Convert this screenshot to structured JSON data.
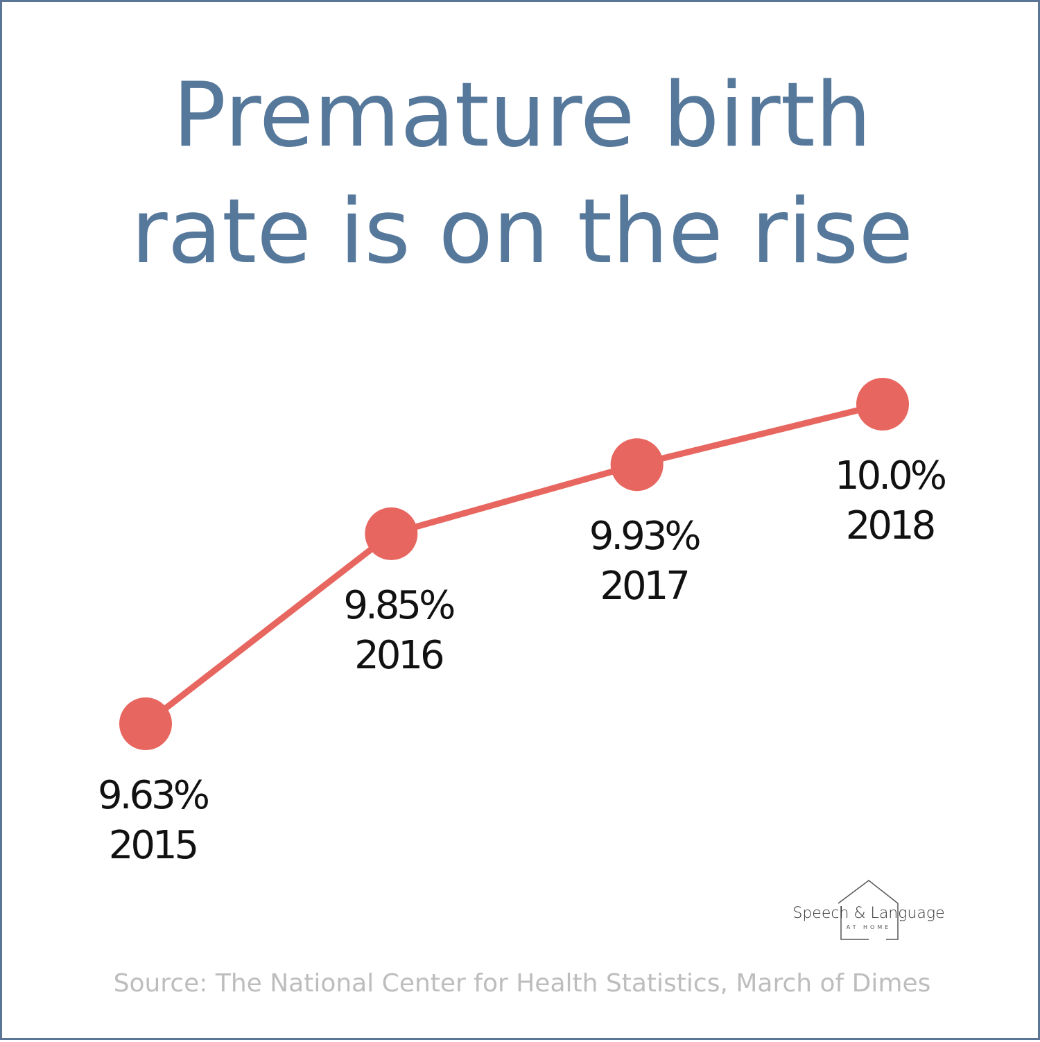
{
  "title": {
    "line1": "Premature birth",
    "line2": "rate is on the rise"
  },
  "chart_data": {
    "type": "line",
    "x": [
      "2015",
      "2016",
      "2017",
      "2018"
    ],
    "values": [
      9.63,
      9.85,
      9.93,
      10.0
    ],
    "value_labels": [
      "9.63%",
      "9.85%",
      "9.93%",
      "10.0%"
    ],
    "grid": false,
    "axes_visible": false,
    "line_color": "#e7665f"
  },
  "logo": {
    "name": "Speech & Language",
    "sub": "AT HOME",
    "icon": "house-outline-icon"
  },
  "source": "Source: The National Center for Health Statistics, March of Dimes",
  "colors": {
    "title": "#56789b",
    "line": "#e7665f",
    "labels": "#111111",
    "source": "#bdbdbd",
    "border": "#5b7595"
  }
}
